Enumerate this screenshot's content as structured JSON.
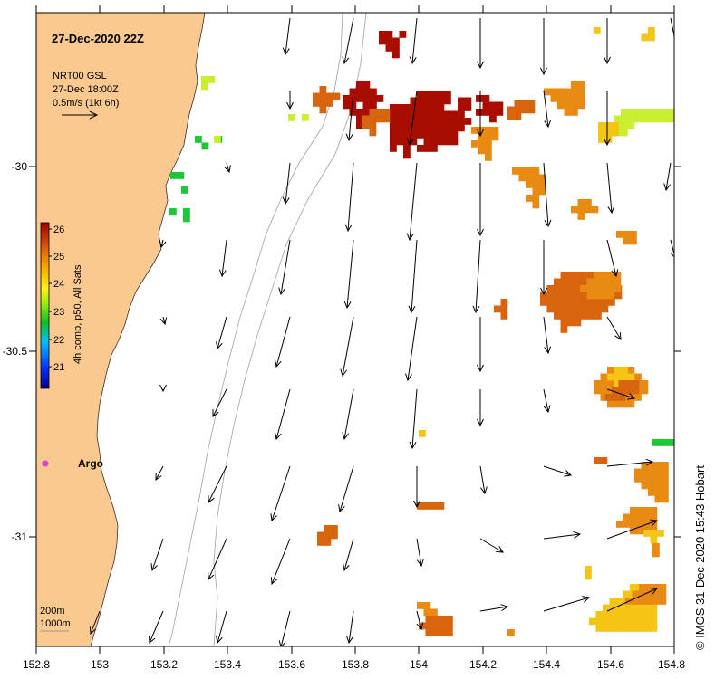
{
  "map": {
    "title": "27-Dec-2020 22Z",
    "product_lines": [
      "NRT00 GSL",
      "27-Dec 18:00Z",
      "0.5m/s (1kt 6h)"
    ],
    "argo_label": "Argo",
    "bathymetry_labels": [
      "200m",
      "1000m"
    ],
    "credit": "© IMOS 31-Dec-2020 15:43 Hobart",
    "land_color": "#fac98f",
    "argo_color": "#e040e0",
    "lon_ticks": [
      "152.8",
      "153",
      "153.2",
      "153.4",
      "153.6",
      "153.8",
      "154",
      "154.2",
      "154.4",
      "154.6",
      "154.8"
    ],
    "lat_ticks": [
      "-30",
      "-30.5",
      "-31"
    ]
  },
  "colorbar": {
    "label": "4h comp, p50, All Sats",
    "ticks": [
      "26",
      "25",
      "24",
      "23",
      "22",
      "21"
    ],
    "range": [
      20.5,
      26.5
    ]
  }
}
